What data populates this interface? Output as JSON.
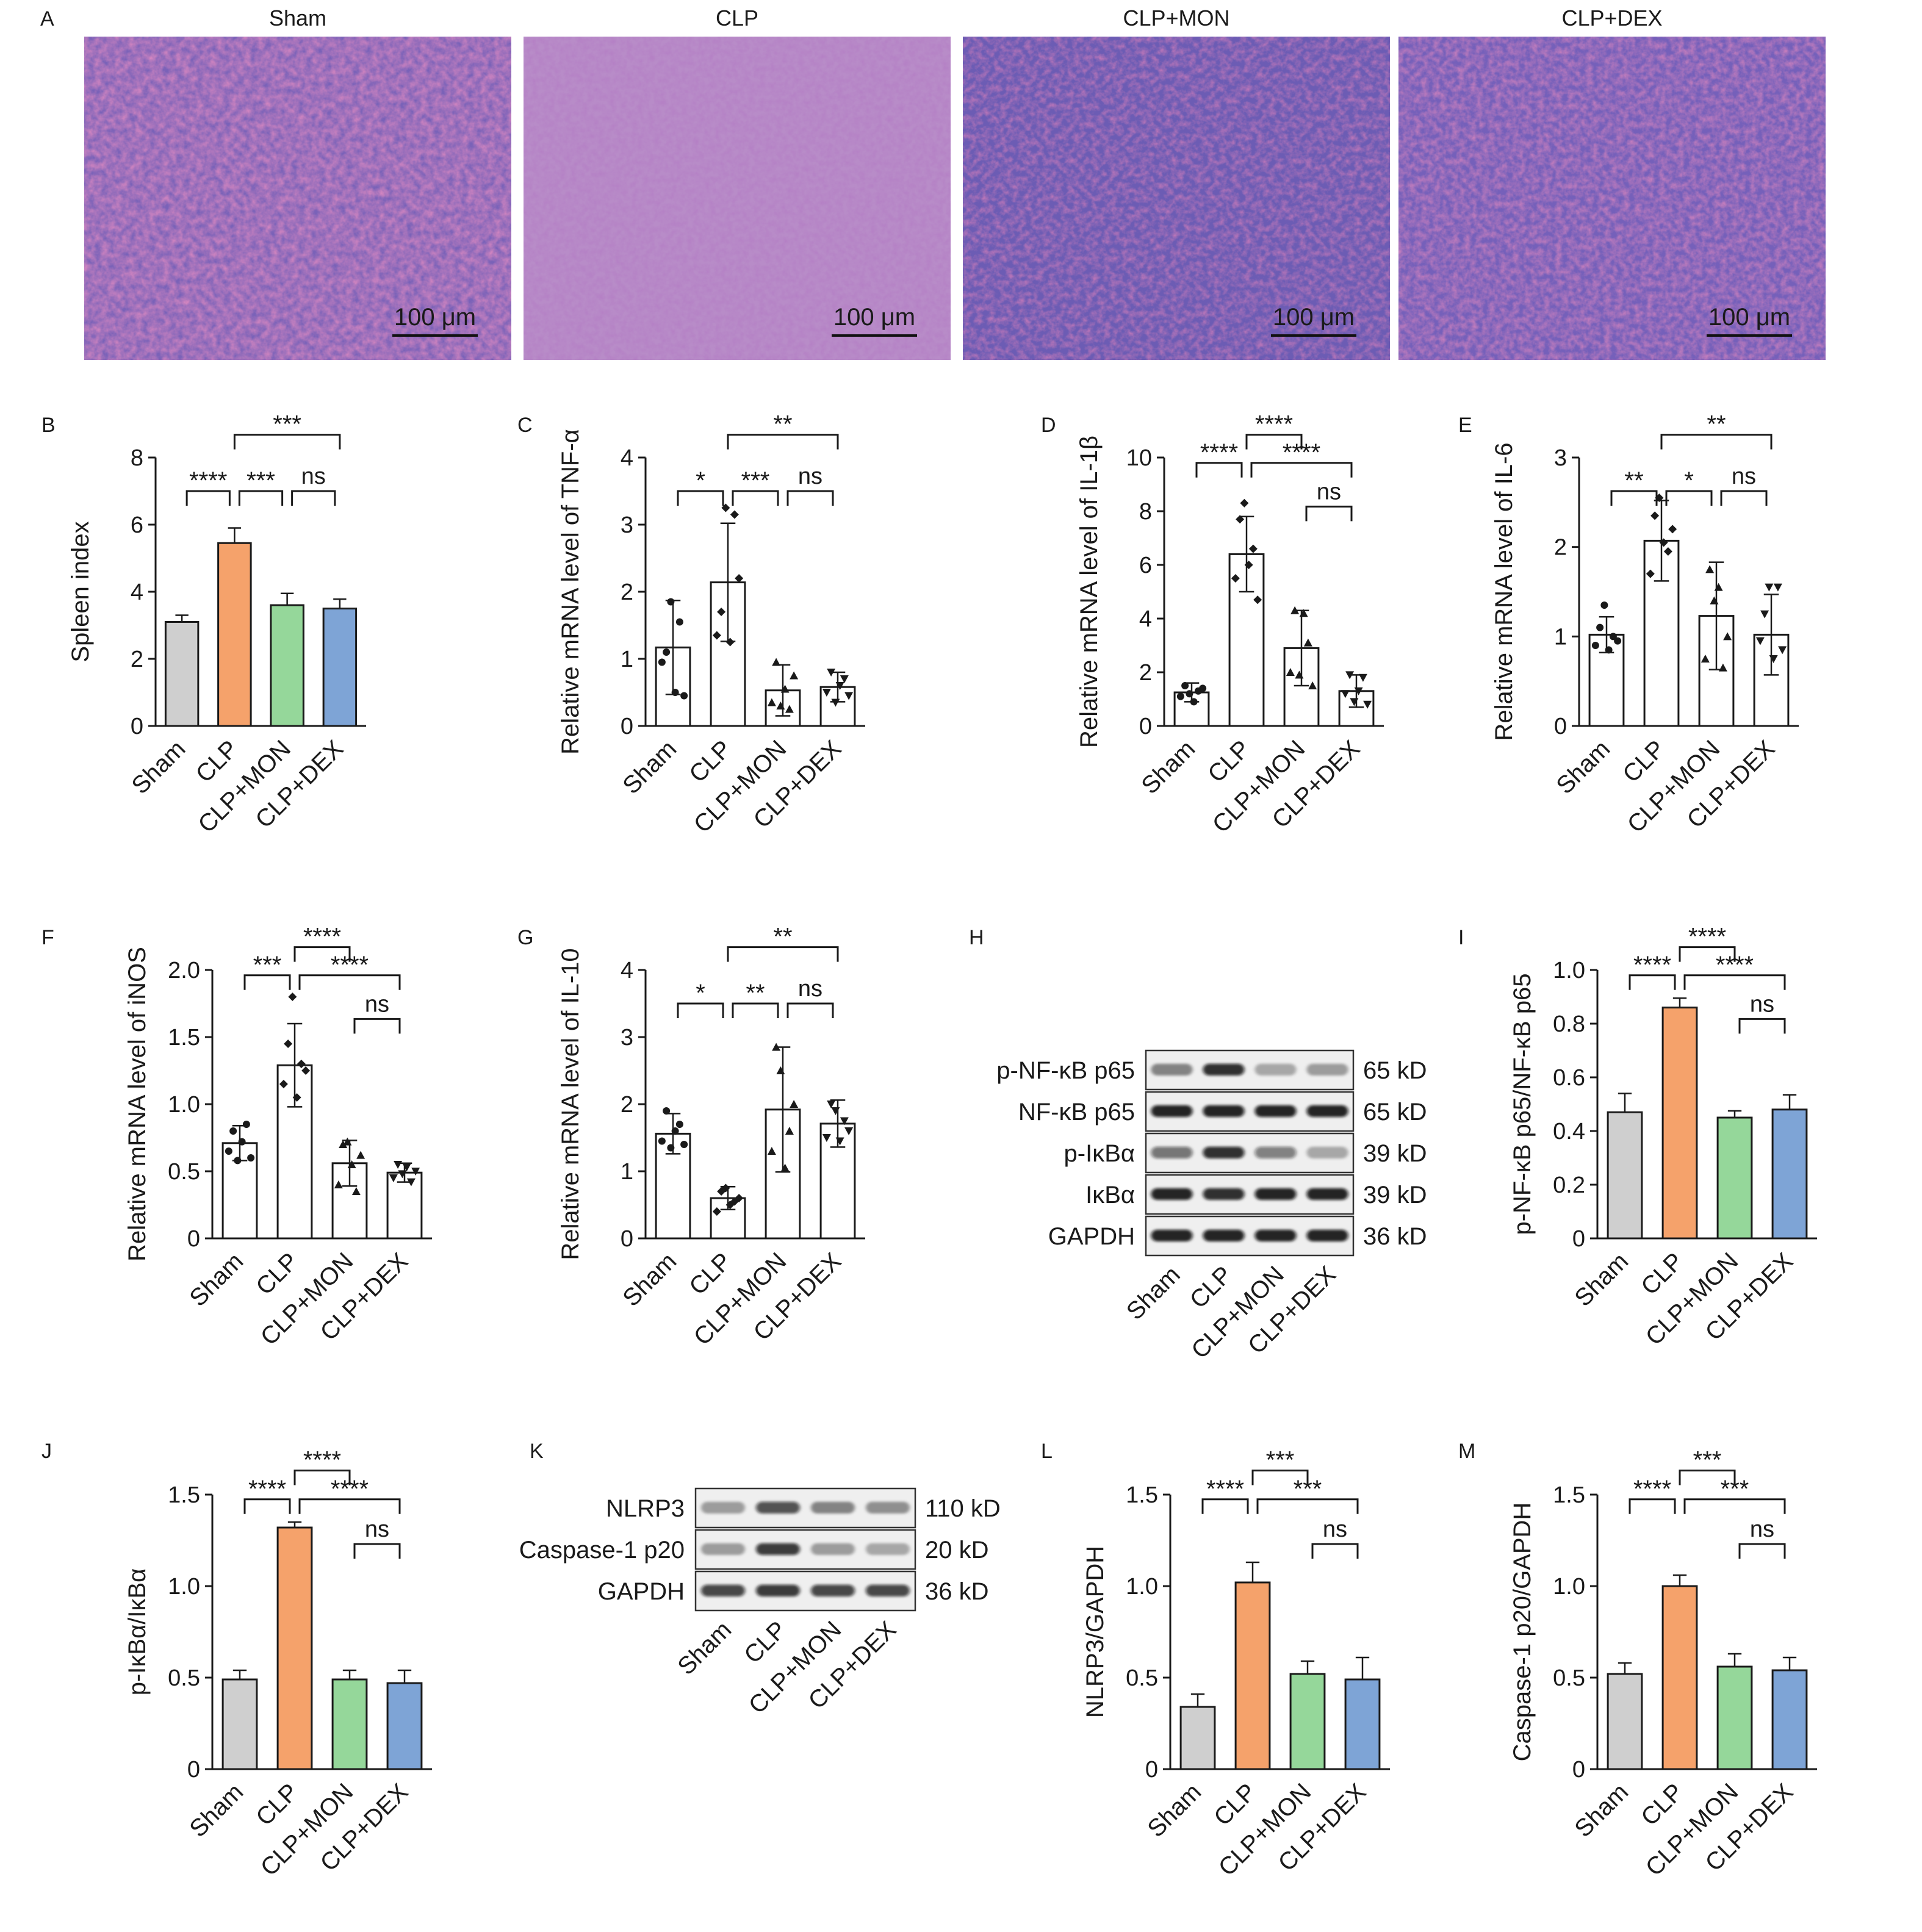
{
  "panel_a": {
    "letter": "A",
    "images": [
      {
        "group": "Sham",
        "scale_bar": "100 μm",
        "tone": "sham"
      },
      {
        "group": "CLP",
        "scale_bar": "100 μm",
        "tone": "clp"
      },
      {
        "group": "CLP+MON",
        "scale_bar": "100 μm",
        "tone": "mon"
      },
      {
        "group": "CLP+DEX",
        "scale_bar": "100 μm",
        "tone": "dex"
      }
    ]
  },
  "colors": {
    "Sham": "#cfcfcf",
    "CLP": "#f5a26b",
    "CLP+MON": "#95d79a",
    "CLP+DEX": "#7ea4d6",
    "outline": "#1a1a1a"
  },
  "chart_data": [
    {
      "panel": "B",
      "type": "bar",
      "style": "filled",
      "categories": [
        "Sham",
        "CLP",
        "CLP+MON",
        "CLP+DEX"
      ],
      "values": [
        3.1,
        5.45,
        3.6,
        3.5
      ],
      "errors": [
        0.2,
        0.45,
        0.35,
        0.28
      ],
      "ylabel": "Spleen index",
      "ylim": [
        0,
        8
      ],
      "yticks": [
        "0",
        "2",
        "4",
        "6",
        "8"
      ],
      "significance": [
        {
          "from": 0,
          "to": 1,
          "label": "****",
          "level": 0
        },
        {
          "from": 1,
          "to": 2,
          "label": "***",
          "level": 0
        },
        {
          "from": 2,
          "to": 3,
          "label": "ns",
          "level": 0
        },
        {
          "from": 1,
          "to": 3,
          "label": "***",
          "level": 2
        }
      ]
    },
    {
      "panel": "C",
      "type": "bar",
      "style": "outline",
      "categories": [
        "Sham",
        "CLP",
        "CLP+MON",
        "CLP+DEX"
      ],
      "values": [
        1.17,
        2.14,
        0.53,
        0.58
      ],
      "errors": [
        0.7,
        0.88,
        0.38,
        0.22
      ],
      "points": [
        [
          0.95,
          1.1,
          1.85,
          0.5,
          1.55,
          0.45
        ],
        [
          1.35,
          1.7,
          3.25,
          1.25,
          3.15,
          2.2
        ],
        [
          0.35,
          0.95,
          0.3,
          0.55,
          0.25,
          0.75
        ],
        [
          0.5,
          0.8,
          0.35,
          0.6,
          0.7,
          0.45
        ]
      ],
      "ylabel": "Relative mRNA level of TNF-α",
      "ylim": [
        0,
        4
      ],
      "yticks": [
        "0",
        "1",
        "2",
        "3",
        "4"
      ],
      "significance": [
        {
          "from": 0,
          "to": 1,
          "label": "*",
          "level": 0
        },
        {
          "from": 1,
          "to": 2,
          "label": "***",
          "level": 0
        },
        {
          "from": 2,
          "to": 3,
          "label": "ns",
          "level": 0
        },
        {
          "from": 1,
          "to": 3,
          "label": "**",
          "level": 2
        }
      ]
    },
    {
      "panel": "D",
      "type": "bar",
      "style": "outline",
      "categories": [
        "Sham",
        "CLP",
        "CLP+MON",
        "CLP+DEX"
      ],
      "values": [
        1.25,
        6.4,
        2.9,
        1.3
      ],
      "errors": [
        0.35,
        1.4,
        1.4,
        0.6
      ],
      "points": [
        [
          1.1,
          1.5,
          1.2,
          0.9,
          1.3,
          1.4
        ],
        [
          5.5,
          7.7,
          8.3,
          6.0,
          6.6,
          4.7
        ],
        [
          2.0,
          4.3,
          1.9,
          4.2,
          3.1,
          1.5
        ],
        [
          1.2,
          1.9,
          0.9,
          1.3,
          1.8,
          0.8
        ]
      ],
      "ylabel": "Relative mRNA level of IL-1β",
      "ylim": [
        0,
        10
      ],
      "yticks": [
        "0",
        "2",
        "4",
        "6",
        "8",
        "10"
      ],
      "significance": [
        {
          "from": 0,
          "to": 1,
          "label": "****",
          "level": 1
        },
        {
          "from": 1,
          "to": 3,
          "label": "****",
          "level": 1
        },
        {
          "from": 2,
          "to": 3,
          "label": "ns",
          "level": -0.55
        },
        {
          "from": 1,
          "to": 2,
          "label": "****",
          "level": 2
        }
      ]
    },
    {
      "panel": "E",
      "type": "bar",
      "style": "outline",
      "categories": [
        "Sham",
        "CLP",
        "CLP+MON",
        "CLP+DEX"
      ],
      "values": [
        1.02,
        2.07,
        1.23,
        1.02
      ],
      "errors": [
        0.2,
        0.45,
        0.6,
        0.45
      ],
      "points": [
        [
          0.9,
          1.1,
          1.35,
          0.85,
          1.0,
          0.95
        ],
        [
          1.7,
          2.35,
          2.55,
          2.05,
          1.95,
          2.2
        ],
        [
          0.75,
          1.75,
          1.4,
          1.55,
          0.65,
          1.0
        ],
        [
          0.95,
          1.25,
          1.55,
          0.75,
          1.55,
          0.85
        ]
      ],
      "ylabel": "Relative mRNA level of IL-6",
      "ylim": [
        0,
        3
      ],
      "yticks": [
        "0",
        "1",
        "2",
        "3"
      ],
      "significance": [
        {
          "from": 0,
          "to": 1,
          "label": "**",
          "level": 0
        },
        {
          "from": 1,
          "to": 2,
          "label": "*",
          "level": 0
        },
        {
          "from": 2,
          "to": 3,
          "label": "ns",
          "level": 0
        },
        {
          "from": 1,
          "to": 3,
          "label": "**",
          "level": 2
        }
      ]
    },
    {
      "panel": "F",
      "type": "bar",
      "style": "outline",
      "categories": [
        "Sham",
        "CLP",
        "CLP+MON",
        "CLP+DEX"
      ],
      "values": [
        0.71,
        1.29,
        0.56,
        0.49
      ],
      "errors": [
        0.13,
        0.31,
        0.17,
        0.07
      ],
      "points": [
        [
          0.65,
          0.8,
          0.58,
          0.72,
          0.85,
          0.6
        ],
        [
          1.15,
          1.45,
          1.8,
          1.05,
          1.3,
          1.25
        ],
        [
          0.4,
          0.7,
          0.72,
          0.55,
          0.35,
          0.62
        ],
        [
          0.45,
          0.55,
          0.48,
          0.53,
          0.42,
          0.5
        ]
      ],
      "ylabel": "Relative mRNA level of iNOS",
      "ylim": [
        0,
        2
      ],
      "yticks": [
        "0",
        "0.5",
        "1.0",
        "1.5",
        "2.0"
      ],
      "significance": [
        {
          "from": 0,
          "to": 1,
          "label": "***",
          "level": 1
        },
        {
          "from": 1,
          "to": 3,
          "label": "****",
          "level": 1
        },
        {
          "from": 2,
          "to": 3,
          "label": "ns",
          "level": -0.55
        },
        {
          "from": 1,
          "to": 2,
          "label": "****",
          "level": 2
        }
      ]
    },
    {
      "panel": "G",
      "type": "bar",
      "style": "outline",
      "categories": [
        "Sham",
        "CLP",
        "CLP+MON",
        "CLP+DEX"
      ],
      "values": [
        1.56,
        0.6,
        1.92,
        1.71
      ],
      "errors": [
        0.3,
        0.17,
        0.93,
        0.35
      ],
      "points": [
        [
          1.45,
          1.9,
          1.35,
          1.6,
          1.7,
          1.4
        ],
        [
          0.4,
          0.7,
          0.75,
          0.5,
          0.55,
          0.6
        ],
        [
          1.3,
          2.85,
          2.5,
          1.05,
          1.6,
          2.0
        ],
        [
          1.5,
          2.0,
          1.9,
          1.45,
          1.75,
          1.6
        ]
      ],
      "ylabel": "Relative mRNA level of IL-10",
      "ylim": [
        0,
        4
      ],
      "yticks": [
        "0",
        "1",
        "2",
        "3",
        "4"
      ],
      "significance": [
        {
          "from": 0,
          "to": 1,
          "label": "*",
          "level": 0
        },
        {
          "from": 1,
          "to": 2,
          "label": "**",
          "level": 0
        },
        {
          "from": 2,
          "to": 3,
          "label": "ns",
          "level": 0
        },
        {
          "from": 1,
          "to": 3,
          "label": "**",
          "level": 2
        }
      ]
    },
    {
      "panel": "I",
      "type": "bar",
      "style": "filled",
      "categories": [
        "Sham",
        "CLP",
        "CLP+MON",
        "CLP+DEX"
      ],
      "values": [
        0.47,
        0.86,
        0.45,
        0.48
      ],
      "errors": [
        0.07,
        0.035,
        0.025,
        0.055
      ],
      "ylabel": "p-NF-κB p65/NF-κB p65",
      "ylim": [
        0,
        1
      ],
      "yticks": [
        "0",
        "0.2",
        "0.4",
        "0.6",
        "0.8",
        "1.0"
      ],
      "significance": [
        {
          "from": 0,
          "to": 1,
          "label": "****",
          "level": 1
        },
        {
          "from": 1,
          "to": 3,
          "label": "****",
          "level": 1
        },
        {
          "from": 2,
          "to": 3,
          "label": "ns",
          "level": -0.55
        },
        {
          "from": 1,
          "to": 2,
          "label": "****",
          "level": 2
        }
      ]
    },
    {
      "panel": "J",
      "type": "bar",
      "style": "filled",
      "categories": [
        "Sham",
        "CLP",
        "CLP+MON",
        "CLP+DEX"
      ],
      "values": [
        0.49,
        1.32,
        0.49,
        0.47
      ],
      "errors": [
        0.05,
        0.03,
        0.05,
        0.07
      ],
      "ylabel": "p-IκBα/IκBα",
      "ylim": [
        0,
        1.5
      ],
      "yticks": [
        "0",
        "0.5",
        "1.0",
        "1.5"
      ],
      "significance": [
        {
          "from": 0,
          "to": 1,
          "label": "****",
          "level": 1
        },
        {
          "from": 1,
          "to": 3,
          "label": "****",
          "level": 1
        },
        {
          "from": 2,
          "to": 3,
          "label": "ns",
          "level": -0.55
        },
        {
          "from": 1,
          "to": 2,
          "label": "****",
          "level": 2
        }
      ]
    },
    {
      "panel": "L",
      "type": "bar",
      "style": "filled",
      "categories": [
        "Sham",
        "CLP",
        "CLP+MON",
        "CLP+DEX"
      ],
      "values": [
        0.34,
        1.02,
        0.52,
        0.49
      ],
      "errors": [
        0.07,
        0.11,
        0.07,
        0.12
      ],
      "ylabel": "NLRP3/GAPDH",
      "ylim": [
        0,
        1.5
      ],
      "yticks": [
        "0",
        "0.5",
        "1.0",
        "1.5"
      ],
      "significance": [
        {
          "from": 0,
          "to": 1,
          "label": "****",
          "level": 1
        },
        {
          "from": 1,
          "to": 3,
          "label": "***",
          "level": 1
        },
        {
          "from": 2,
          "to": 3,
          "label": "ns",
          "level": -0.55
        },
        {
          "from": 1,
          "to": 2,
          "label": "***",
          "level": 2
        }
      ]
    },
    {
      "panel": "M",
      "type": "bar",
      "style": "filled",
      "categories": [
        "Sham",
        "CLP",
        "CLP+MON",
        "CLP+DEX"
      ],
      "values": [
        0.52,
        1.0,
        0.56,
        0.54
      ],
      "errors": [
        0.06,
        0.06,
        0.07,
        0.07
      ],
      "ylabel": "Caspase-1 p20/GAPDH",
      "ylim": [
        0,
        1.5
      ],
      "yticks": [
        "0",
        "0.5",
        "1.0",
        "1.5"
      ],
      "significance": [
        {
          "from": 0,
          "to": 1,
          "label": "****",
          "level": 1
        },
        {
          "from": 1,
          "to": 3,
          "label": "***",
          "level": 1
        },
        {
          "from": 2,
          "to": 3,
          "label": "ns",
          "level": -0.55
        },
        {
          "from": 1,
          "to": 2,
          "label": "***",
          "level": 2
        }
      ]
    }
  ],
  "blots": [
    {
      "panel": "H",
      "lanes": [
        "Sham",
        "CLP",
        "CLP+MON",
        "CLP+DEX"
      ],
      "rows": [
        {
          "protein": "p-NF-κB p65",
          "size": "65 kD",
          "intensity": [
            0.45,
            0.85,
            0.3,
            0.35
          ]
        },
        {
          "protein": "NF-κB p65",
          "size": "65 kD",
          "intensity": [
            0.9,
            0.9,
            0.9,
            0.9
          ]
        },
        {
          "protein": "p-IκBα",
          "size": "39 kD",
          "intensity": [
            0.55,
            0.85,
            0.5,
            0.3
          ]
        },
        {
          "protein": "IκBα",
          "size": "39 kD",
          "intensity": [
            0.9,
            0.85,
            0.9,
            0.9
          ]
        },
        {
          "protein": "GAPDH",
          "size": "36 kD",
          "intensity": [
            0.9,
            0.9,
            0.9,
            0.9
          ]
        }
      ]
    },
    {
      "panel": "K",
      "lanes": [
        "Sham",
        "CLP",
        "CLP+MON",
        "CLP+DEX"
      ],
      "rows": [
        {
          "protein": "NLRP3",
          "size": "110 kD",
          "intensity": [
            0.35,
            0.7,
            0.45,
            0.4
          ]
        },
        {
          "protein": "Caspase-1 p20",
          "size": "20 kD",
          "intensity": [
            0.35,
            0.8,
            0.35,
            0.3
          ]
        },
        {
          "protein": "GAPDH",
          "size": "36 kD",
          "intensity": [
            0.75,
            0.8,
            0.75,
            0.75
          ]
        }
      ]
    }
  ]
}
